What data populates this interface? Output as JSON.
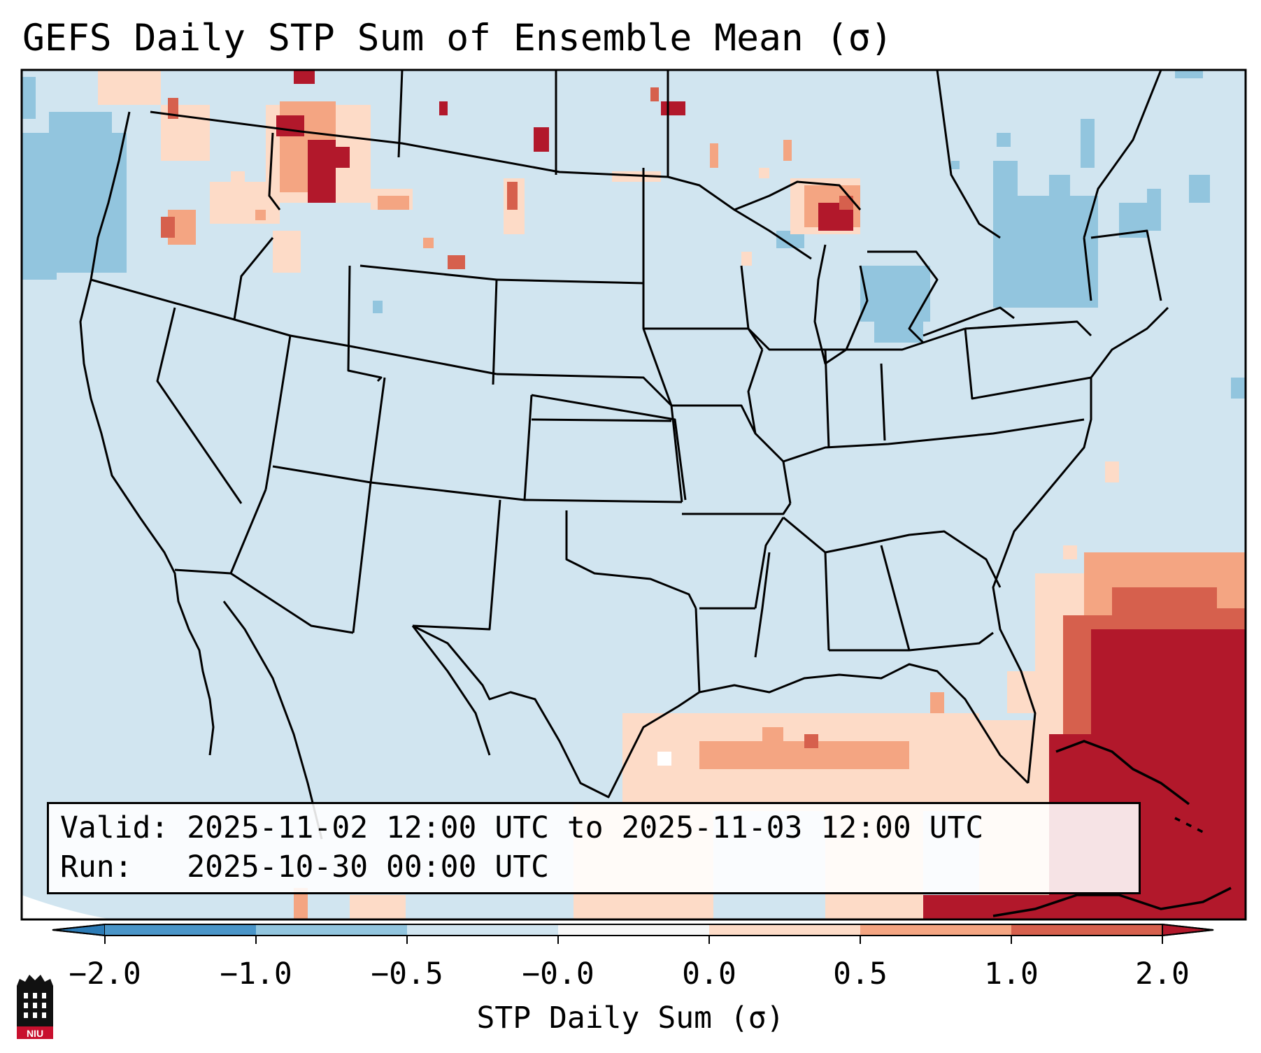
{
  "title": "GEFS Daily STP Sum of Ensemble Mean (σ)",
  "info": {
    "valid_line": "Valid: 2025-11-02 12:00 UTC to 2025-11-03 12:00 UTC",
    "run_line": "Run:   2025-10-30 00:00 UTC"
  },
  "colorbar": {
    "label": "STP Daily Sum (σ)",
    "ticks": [
      "−2.0",
      "−1.0",
      "−0.5",
      "−0.0",
      "0.0",
      "0.5",
      "1.0",
      "2.0"
    ],
    "colors": [
      "#2c7bb6",
      "#4a95c8",
      "#92c5de",
      "#d1e5f0",
      "#f7f7f7",
      "#fddbc7",
      "#f4a582",
      "#d6604d",
      "#b2182b"
    ],
    "extend": "both"
  },
  "map": {
    "background_color": "#d1e5f0",
    "region": "CONUS",
    "regions_positive": [
      {
        "name": "Northern Rockies / Idaho-Montana",
        "level": "0.5 to >2.0"
      },
      {
        "name": "Upper Peninsula of Michigan",
        "level": "0.5 to >2.0"
      },
      {
        "name": "North Dakota / Montana scattered",
        "level": "0.5 to >2.0"
      },
      {
        "name": "Western Atlantic / Bahamas / Cuba",
        "level": ">2.0"
      },
      {
        "name": "Gulf of Mexico",
        "level": "0.0 to 1.0"
      }
    ],
    "regions_negative": [
      {
        "name": "Pacific off Washington/Oregon",
        "level": "-0.5 to -1.0"
      },
      {
        "name": "Northeast US / Great Lakes",
        "level": "-0.5 to -1.0"
      }
    ]
  },
  "logo": {
    "text": "NIU"
  }
}
